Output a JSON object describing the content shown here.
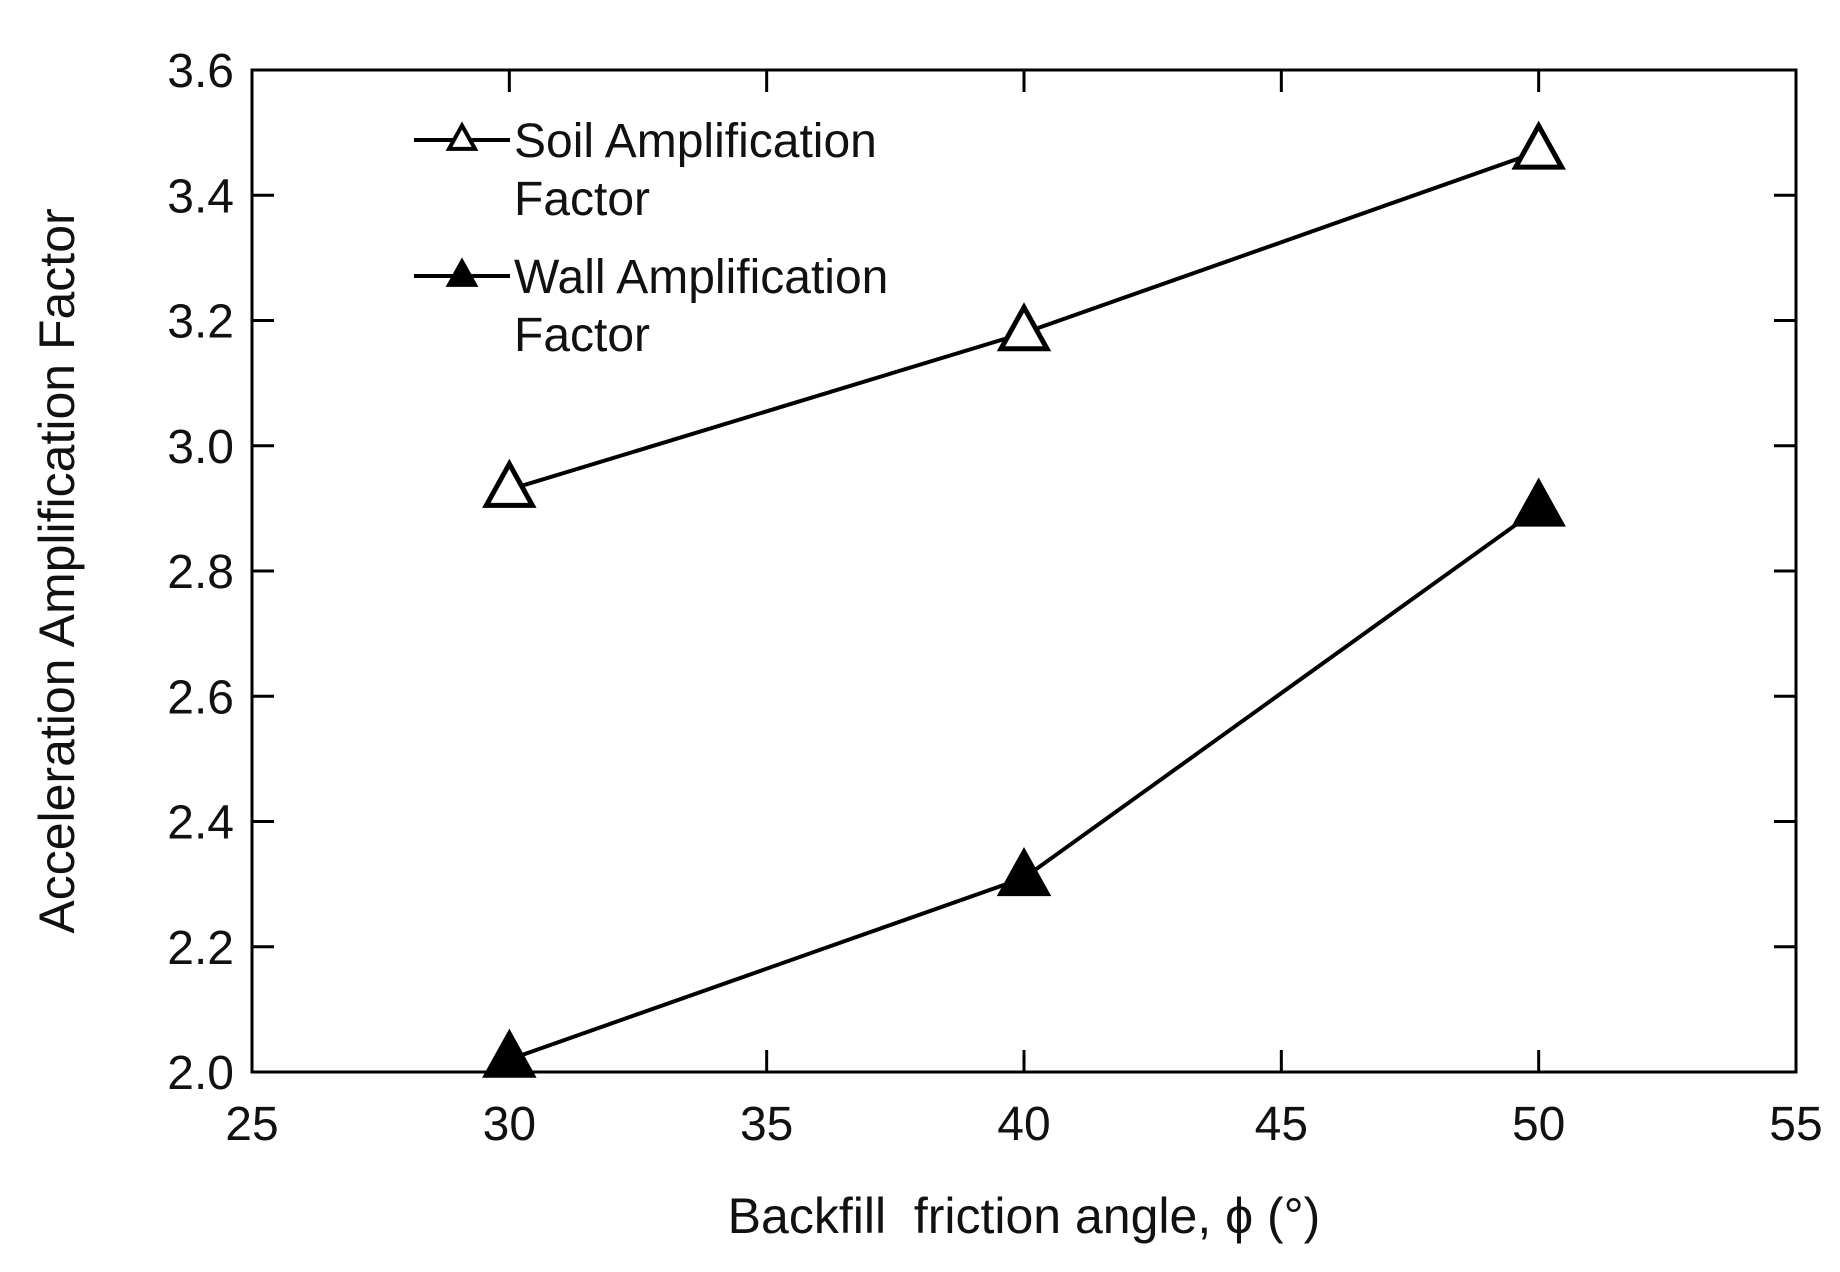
{
  "chart_data": {
    "type": "line",
    "title": "",
    "xlabel": "Backfill  friction angle, ϕ (°)",
    "ylabel": "Acceleration Amplification Factor",
    "xlim": [
      25,
      55
    ],
    "ylim": [
      2.0,
      3.6
    ],
    "xticks": [
      25,
      30,
      35,
      40,
      45,
      50,
      55
    ],
    "yticks": [
      2.0,
      2.2,
      2.4,
      2.6,
      2.8,
      3.0,
      3.2,
      3.4,
      3.6
    ],
    "xtick_labels": [
      "25",
      "30",
      "35",
      "40",
      "45",
      "50",
      "55"
    ],
    "ytick_labels": [
      "2.0",
      "2.2",
      "2.4",
      "2.6",
      "2.8",
      "3.0",
      "3.2",
      "3.4",
      "3.6"
    ],
    "grid": false,
    "legend_position": "top-left",
    "x": [
      30,
      40,
      50
    ],
    "series": [
      {
        "name_lines": [
          "Soil Amplification",
          "Factor"
        ],
        "marker": "open-triangle",
        "values": [
          2.93,
          3.18,
          3.47
        ]
      },
      {
        "name_lines": [
          "Wall Amplification",
          "Factor"
        ],
        "marker": "filled-triangle",
        "values": [
          2.02,
          2.31,
          2.9
        ]
      }
    ],
    "colors": {
      "line": "#000000",
      "axis": "#000000",
      "marker_open_fill": "#ffffff",
      "marker_filled_fill": "#000000"
    }
  }
}
